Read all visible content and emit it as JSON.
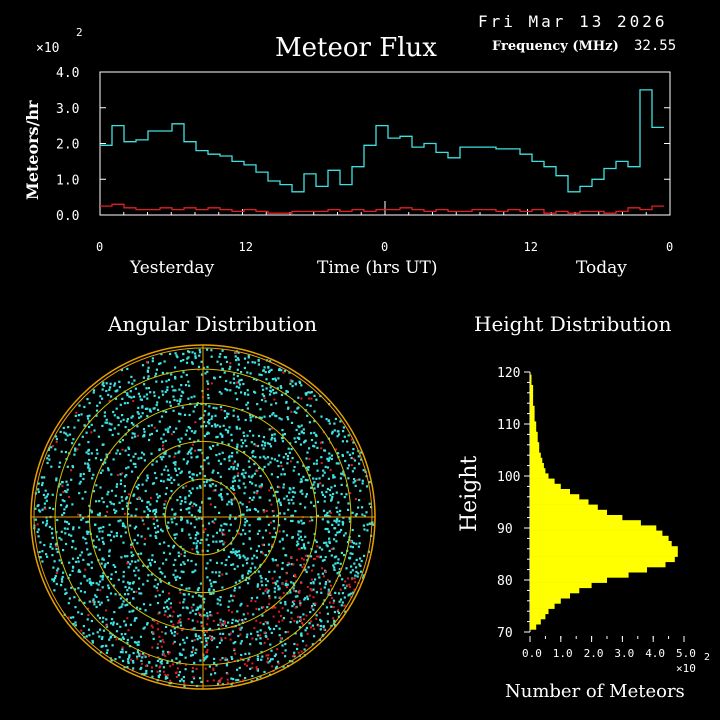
{
  "header": {
    "date": "Fri Mar 13 2026",
    "title": "Meteor Flux",
    "frequency_label": "Frequency (MHz)",
    "frequency_value": "32.55"
  },
  "flux_chart": {
    "chart_data": {
      "type": "line",
      "ylabel": "Meteors/hr",
      "y_multiplier": "×10",
      "y_multiplier_exp": "2",
      "ylim": [
        0,
        4.0
      ],
      "yticks": [
        "0.0",
        "1.0",
        "2.0",
        "3.0",
        "4.0"
      ],
      "xlabel": "Time (hrs UT)",
      "xticks": [
        "0",
        "12",
        "0",
        "12",
        "0"
      ],
      "day_labels": [
        "Yesterday",
        "Today"
      ],
      "series": [
        {
          "color": "#40e0e0",
          "values": [
            1.95,
            2.5,
            2.05,
            2.1,
            2.35,
            2.35,
            2.55,
            2.05,
            1.8,
            1.7,
            1.65,
            1.5,
            1.4,
            1.2,
            0.95,
            0.85,
            0.65,
            1.15,
            0.8,
            1.25,
            0.85,
            1.35,
            1.95,
            2.5,
            2.15,
            2.2,
            1.9,
            2.0,
            1.75,
            1.6,
            1.9,
            1.9,
            1.9,
            1.85,
            1.85,
            1.7,
            1.5,
            1.35,
            1.1,
            0.65,
            0.8,
            1.0,
            1.3,
            1.5,
            1.35,
            3.5,
            2.45
          ]
        },
        {
          "color": "#e02020",
          "values": [
            0.25,
            0.3,
            0.2,
            0.15,
            0.15,
            0.2,
            0.15,
            0.2,
            0.15,
            0.2,
            0.15,
            0.1,
            0.15,
            0.1,
            0.05,
            0.05,
            0.1,
            0.1,
            0.1,
            0.15,
            0.1,
            0.15,
            0.1,
            0.15,
            0.15,
            0.2,
            0.15,
            0.1,
            0.15,
            0.1,
            0.1,
            0.15,
            0.15,
            0.1,
            0.15,
            0.1,
            0.15,
            0.05,
            0.1,
            0.05,
            0.1,
            0.1,
            0.05,
            0.1,
            0.2,
            0.15,
            0.25
          ]
        }
      ]
    }
  },
  "angular": {
    "title": "Angular Distribution"
  },
  "height_chart": {
    "title": "Height Distribution",
    "chart_data": {
      "type": "bar",
      "orientation": "horizontal",
      "ylabel": "Height",
      "xlabel": "Number of Meteors",
      "x_multiplier": "×10",
      "x_multiplier_exp": "2",
      "xlim": [
        0,
        5.0
      ],
      "ylim": [
        70,
        120
      ],
      "xticks": [
        "0.0",
        "1.0",
        "2.0",
        "3.0",
        "4.0",
        "5.0"
      ],
      "yticks": [
        "70",
        "80",
        "90",
        "100",
        "110",
        "120"
      ],
      "bar_color": "#ffff00",
      "heights": [
        71,
        72,
        73,
        74,
        75,
        76,
        77,
        78,
        79,
        80,
        81,
        82,
        83,
        84,
        85,
        86,
        87,
        88,
        89,
        90,
        91,
        92,
        93,
        94,
        95,
        96,
        97,
        98,
        99,
        100,
        101,
        102,
        103,
        104,
        105,
        106,
        107,
        108,
        109,
        110,
        111,
        112,
        113,
        114,
        115,
        116,
        117,
        118,
        119
      ],
      "values": [
        0.2,
        0.35,
        0.5,
        0.6,
        0.8,
        1.0,
        1.3,
        1.6,
        2.0,
        2.5,
        3.2,
        3.8,
        4.4,
        4.7,
        4.8,
        4.8,
        4.6,
        4.5,
        4.3,
        4.1,
        3.6,
        3.0,
        2.5,
        2.2,
        1.9,
        1.6,
        1.3,
        1.0,
        0.8,
        0.6,
        0.5,
        0.45,
        0.4,
        0.35,
        0.3,
        0.3,
        0.25,
        0.25,
        0.2,
        0.2,
        0.15,
        0.15,
        0.15,
        0.1,
        0.1,
        0.1,
        0.1,
        0.05,
        0.05
      ]
    }
  }
}
